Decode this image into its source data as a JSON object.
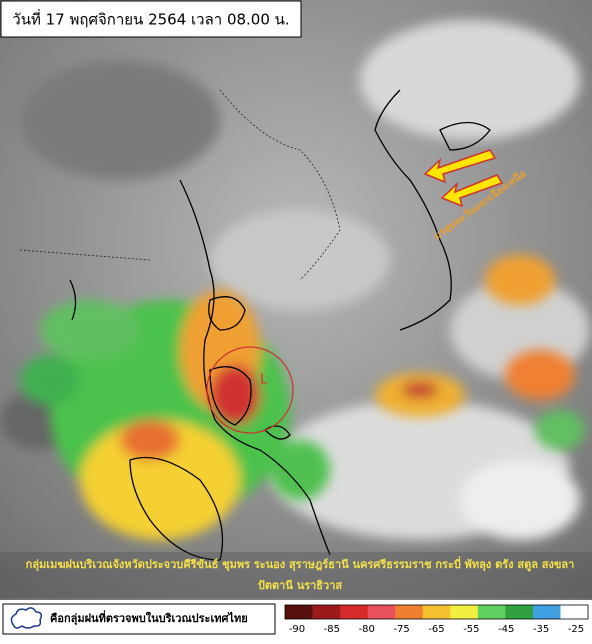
{
  "title": "วันที่ 17 พฤศจิกายน 2564 เวลา 08.00 น.",
  "monsoon_label": "มรสุมตะวันออกเฉียงเหนือ",
  "low_label": "L",
  "caption": {
    "line1": "กลุ่มเมฆฝนบริเวณจังหวัดประจวบคีรีขันธ์ ชุมพร ระนอง สุราษฎร์ธานี นครศรีธรรมราช กระบี่ พัทลุง ตรัง สตูล สงขลา",
    "line2": "ปัตตานี นราธิวาส"
  },
  "legend": {
    "text": "คือกลุ่มฝนที่ตรวจพบในบริเวณประเทศไทย"
  },
  "colorbar": {
    "labels": [
      -90,
      -85,
      -80,
      -75,
      -65,
      -55,
      -45,
      -35,
      -25
    ],
    "colors": [
      "#5a0f0f",
      "#9c1a1a",
      "#d42a2a",
      "#e8505a",
      "#f08030",
      "#f5c030",
      "#f0f040",
      "#60d060",
      "#30a040",
      "#40a0e0",
      "#ffffff"
    ]
  }
}
